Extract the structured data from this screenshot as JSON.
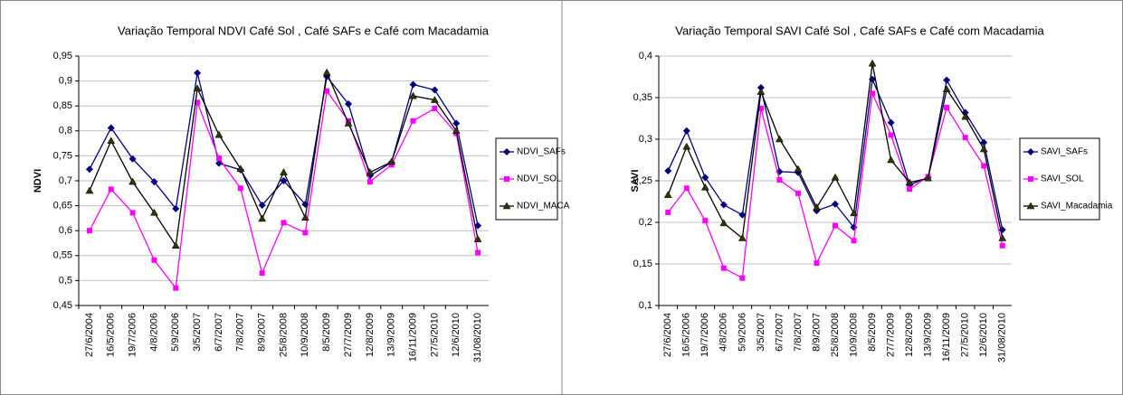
{
  "chart_data": [
    {
      "type": "line",
      "title": "Variação Temporal NDVI Café Sol , Café SAFs e Café com Macadamia",
      "y_label": "NDVI",
      "categories": [
        "27/6/2004",
        "16/5/2006",
        "19/7/2006",
        "4/8/2006",
        "5/9/2006",
        "3/5/2007",
        "6/7/2007",
        "7/8/2007",
        "8/9/2007",
        "25/8/2008",
        "10/9/2008",
        "8/5/2009",
        "27/7/2009",
        "12/8/2009",
        "13/9/2009",
        "16/11/2009",
        "27/5/2010",
        "12/6/2010",
        "31/08/2010"
      ],
      "ylim": [
        0.45,
        0.95
      ],
      "yticks": [
        {
          "value": 0.45,
          "label": "0,45"
        },
        {
          "value": 0.5,
          "label": "0,5"
        },
        {
          "value": 0.55,
          "label": "0,55"
        },
        {
          "value": 0.6,
          "label": "0,6"
        },
        {
          "value": 0.65,
          "label": "0,65"
        },
        {
          "value": 0.7,
          "label": "0,7"
        },
        {
          "value": 0.75,
          "label": "0,75"
        },
        {
          "value": 0.8,
          "label": "0,8"
        },
        {
          "value": 0.85,
          "label": "0,85"
        },
        {
          "value": 0.9,
          "label": "0,9"
        },
        {
          "value": 0.95,
          "label": "0,95"
        }
      ],
      "grid": true,
      "legend": "right",
      "series": [
        {
          "name": "NDVI_SAFs",
          "color": "#000080",
          "marker": "diamond",
          "values": [
            0.723,
            0.806,
            0.744,
            0.698,
            0.644,
            0.916,
            0.735,
            0.722,
            0.651,
            0.7,
            0.653,
            0.909,
            0.854,
            0.71,
            0.737,
            0.893,
            0.882,
            0.815,
            0.61
          ]
        },
        {
          "name": "NDVI_SOL",
          "color": "#ff00ff",
          "marker": "square",
          "values": [
            0.6,
            0.683,
            0.636,
            0.541,
            0.485,
            0.857,
            0.745,
            0.685,
            0.515,
            0.616,
            0.596,
            0.88,
            0.82,
            0.698,
            0.732,
            0.82,
            0.845,
            0.795,
            0.556
          ]
        },
        {
          "name": "NDVI_MACA",
          "color": "#000000",
          "marker": "triangle",
          "values": [
            0.68,
            0.78,
            0.698,
            0.636,
            0.57,
            0.885,
            0.792,
            0.724,
            0.624,
            0.717,
            0.626,
            0.917,
            0.815,
            0.717,
            0.738,
            0.87,
            0.862,
            0.8,
            0.583
          ]
        }
      ]
    },
    {
      "type": "line",
      "title": "Variação Temporal SAVI Café Sol , Café SAFs e Café com Macadamia",
      "y_label": "SAVI",
      "categories": [
        "27/6/2004",
        "16/5/2006",
        "19/7/2006",
        "4/8/2006",
        "5/9/2006",
        "3/5/2007",
        "6/7/2007",
        "7/8/2007",
        "8/9/2007",
        "25/8/2008",
        "10/9/2008",
        "8/5/2009",
        "27/7/2009",
        "12/8/2009",
        "13/9/2009",
        "16/11/2009",
        "27/5/2010",
        "12/6/2010",
        "31/08/2010"
      ],
      "ylim": [
        0.1,
        0.4
      ],
      "yticks": [
        {
          "value": 0.1,
          "label": "0,1"
        },
        {
          "value": 0.15,
          "label": "0,15"
        },
        {
          "value": 0.2,
          "label": "0,2"
        },
        {
          "value": 0.25,
          "label": "0,25"
        },
        {
          "value": 0.3,
          "label": "0,3"
        },
        {
          "value": 0.35,
          "label": "0,35"
        },
        {
          "value": 0.4,
          "label": "0,4"
        }
      ],
      "grid": true,
      "legend": "right",
      "series": [
        {
          "name": "SAVI_SAFs",
          "color": "#000080",
          "marker": "diamond",
          "values": [
            0.262,
            0.31,
            0.254,
            0.221,
            0.209,
            0.362,
            0.261,
            0.26,
            0.214,
            0.222,
            0.194,
            0.372,
            0.32,
            0.245,
            0.254,
            0.371,
            0.332,
            0.296,
            0.191
          ]
        },
        {
          "name": "SAVI_SOL",
          "color": "#ff00ff",
          "marker": "square",
          "values": [
            0.212,
            0.241,
            0.202,
            0.145,
            0.133,
            0.337,
            0.251,
            0.235,
            0.151,
            0.196,
            0.178,
            0.355,
            0.305,
            0.24,
            0.255,
            0.338,
            0.302,
            0.268,
            0.172
          ]
        },
        {
          "name": "SAVI_Macadamia",
          "color": "#000000",
          "marker": "triangle",
          "values": [
            0.233,
            0.291,
            0.242,
            0.199,
            0.181,
            0.357,
            0.3,
            0.264,
            0.218,
            0.254,
            0.211,
            0.391,
            0.275,
            0.248,
            0.253,
            0.36,
            0.327,
            0.288,
            0.181
          ]
        }
      ]
    }
  ]
}
